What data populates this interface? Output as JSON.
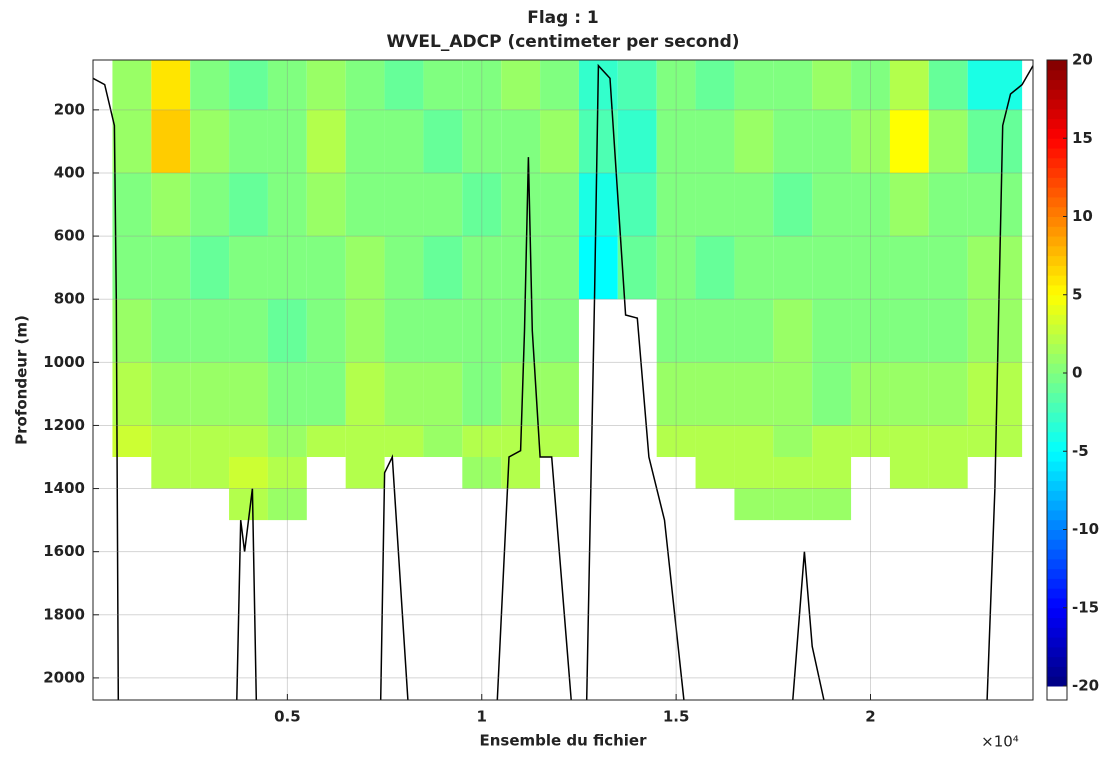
{
  "chart_data": {
    "type": "heatmap",
    "title": "Flag : 1",
    "subtitle": "WVEL_ADCP (centimeter per second)",
    "x_label": "Ensemble du fichier",
    "y_label": "Profondeur (m)",
    "x_exponent_label": "×10⁴",
    "xlim": [
      0,
      24180
    ],
    "xticks": [
      {
        "value": 5000,
        "label": "0.5"
      },
      {
        "value": 10000,
        "label": "1"
      },
      {
        "value": 15000,
        "label": "1.5"
      },
      {
        "value": 20000,
        "label": "2"
      }
    ],
    "ylim": [
      42,
      2070
    ],
    "y_reversed": true,
    "yticks": [
      200,
      400,
      600,
      800,
      1000,
      1200,
      1400,
      1600,
      1800,
      2000
    ],
    "grid": true,
    "colormap": "jet",
    "clim": [
      -20,
      20
    ],
    "colorbar_ticks": [
      -20,
      -15,
      -10,
      -5,
      0,
      5,
      10,
      15,
      20
    ],
    "x_edges": [
      500,
      1500,
      2500,
      3500,
      4500,
      5500,
      6500,
      7500,
      8500,
      9500,
      10500,
      11500,
      12500,
      13500,
      14500,
      15500,
      16500,
      17500,
      18500,
      19500,
      20500,
      21500,
      22500,
      23900
    ],
    "y_edges": [
      42,
      200,
      400,
      600,
      800,
      1000,
      1200,
      1300,
      1400,
      1500
    ],
    "z": [
      [
        1,
        6,
        0,
        -1,
        0,
        1,
        0,
        -1,
        0,
        0,
        1,
        0,
        -3,
        -2,
        0,
        -1,
        0,
        0,
        1,
        0,
        2,
        -1,
        -4
      ],
      [
        1,
        7,
        1,
        0,
        0,
        2,
        0,
        0,
        -1,
        0,
        0,
        1,
        -2,
        -3,
        0,
        0,
        1,
        0,
        0,
        1,
        5,
        1,
        -1
      ],
      [
        0,
        1,
        0,
        -1,
        0,
        1,
        0,
        0,
        0,
        -1,
        0,
        0,
        -4,
        -2,
        0,
        0,
        0,
        -1,
        0,
        0,
        1,
        0,
        0
      ],
      [
        0,
        0,
        -1,
        0,
        0,
        0,
        1,
        0,
        -1,
        0,
        0,
        0,
        -5,
        -1,
        0,
        -1,
        0,
        0,
        0,
        0,
        0,
        0,
        1
      ],
      [
        1,
        0,
        0,
        0,
        -1,
        0,
        1,
        0,
        0,
        0,
        0,
        0,
        null,
        null,
        0,
        0,
        0,
        1,
        0,
        0,
        0,
        0,
        1
      ],
      [
        2,
        1,
        1,
        1,
        0,
        0,
        2,
        1,
        1,
        0,
        1,
        1,
        null,
        null,
        1,
        1,
        1,
        1,
        0,
        1,
        1,
        1,
        2
      ],
      [
        3,
        2,
        2,
        2,
        1,
        2,
        2,
        2,
        1,
        2,
        2,
        2,
        null,
        null,
        2,
        2,
        2,
        1,
        2,
        2,
        2,
        2,
        2
      ],
      [
        null,
        2,
        2,
        3,
        2,
        null,
        2,
        null,
        null,
        1,
        2,
        null,
        null,
        null,
        null,
        2,
        2,
        2,
        2,
        null,
        2,
        2,
        null
      ],
      [
        null,
        null,
        null,
        2,
        1,
        null,
        null,
        null,
        null,
        null,
        null,
        null,
        null,
        null,
        null,
        null,
        1,
        1,
        1,
        null,
        null,
        null,
        null
      ]
    ],
    "outline": {
      "x": [
        0,
        300,
        550,
        600,
        650,
        null,
        3700,
        3800,
        3900,
        4100,
        4200,
        null,
        7400,
        7500,
        7700,
        8100,
        null,
        10400,
        10700,
        11000,
        11100,
        11200,
        11300,
        11500,
        11800,
        12300,
        null,
        12700,
        12900,
        13000,
        13300,
        13700,
        14000,
        14300,
        14700,
        15200,
        null,
        18000,
        18300,
        18500,
        18800,
        null,
        23000,
        23200,
        23400,
        23600,
        23900,
        24180
      ],
      "y": [
        100,
        120,
        250,
        800,
        2070,
        null,
        2070,
        1500,
        1600,
        1400,
        2070,
        null,
        2070,
        1350,
        1300,
        2070,
        null,
        2070,
        1300,
        1280,
        900,
        350,
        900,
        1300,
        1300,
        2070,
        null,
        2070,
        800,
        60,
        100,
        850,
        860,
        1300,
        1500,
        2070,
        null,
        2070,
        1600,
        1900,
        2070,
        null,
        2070,
        1400,
        250,
        150,
        120,
        60
      ]
    }
  }
}
